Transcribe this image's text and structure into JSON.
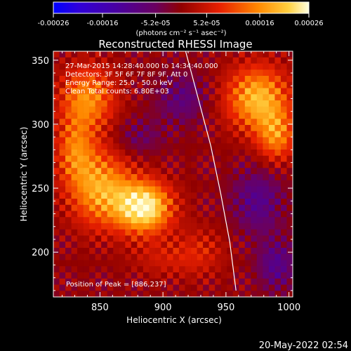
{
  "chart_data": {
    "type": "heatmap",
    "title": "Reconstructed RHESSI Image",
    "xlabel": "Heliocentric X (arcsec)",
    "ylabel": "Heliocentric Y (arcsec)",
    "xlim": [
      813,
      1003
    ],
    "ylim": [
      165,
      357
    ],
    "x_ticks": [
      850,
      900,
      950,
      1000
    ],
    "y_ticks": [
      200,
      250,
      300,
      350
    ],
    "colorbar": {
      "ticks": [
        "-0.00026",
        "-0.00016",
        "-5.2e-05",
        "5.2e-05",
        "0.00016",
        "0.00026"
      ],
      "tick_values": [
        -0.00026,
        -0.00016,
        -5.2e-05,
        5.2e-05,
        0.00016,
        0.00026
      ],
      "range": [
        -0.00026,
        0.00026
      ],
      "units_label": "(photons cm⁻² s⁻¹ asec⁻²)",
      "colormap": "rainbow-to-heat"
    },
    "annotations": [
      "27-Mar-2015 14:28:40.000 to 14:34:40.000",
      "Detectors: 3F 5F 6F 7F 8F 9F, Att 0",
      "Energy Range: 25.0 - 50.0 keV",
      "Clean     Total counts: 6.80E+03"
    ],
    "peak_label": "Position of Peak = [886,237]",
    "peak": [
      886,
      237
    ],
    "limb": [
      [
        918,
        357
      ],
      [
        928,
        320
      ],
      [
        938,
        283
      ],
      [
        946,
        245
      ],
      [
        953,
        208
      ],
      [
        958,
        170
      ]
    ],
    "sources": [
      {
        "x": 885,
        "y": 235,
        "amp": 0.00026,
        "sx": 22,
        "sy": 20
      },
      {
        "x": 850,
        "y": 250,
        "amp": 0.00018,
        "sx": 25,
        "sy": 30
      },
      {
        "x": 840,
        "y": 320,
        "amp": 0.00016,
        "sx": 22,
        "sy": 25
      },
      {
        "x": 830,
        "y": 280,
        "amp": 0.00012,
        "sx": 15,
        "sy": 25
      },
      {
        "x": 975,
        "y": 320,
        "amp": 0.0002,
        "sx": 25,
        "sy": 25
      },
      {
        "x": 990,
        "y": 290,
        "amp": 0.00014,
        "sx": 15,
        "sy": 20
      },
      {
        "x": 930,
        "y": 200,
        "amp": 6e-05,
        "sx": 20,
        "sy": 20
      },
      {
        "x": 900,
        "y": 195,
        "amp": 5e-05,
        "sx": 25,
        "sy": 15
      },
      {
        "x": 915,
        "y": 320,
        "amp": -8e-05,
        "sx": 20,
        "sy": 20
      },
      {
        "x": 975,
        "y": 240,
        "amp": -0.0001,
        "sx": 20,
        "sy": 25
      },
      {
        "x": 880,
        "y": 290,
        "amp": -6e-05,
        "sx": 20,
        "sy": 15
      },
      {
        "x": 990,
        "y": 190,
        "amp": -0.0001,
        "sx": 15,
        "sy": 20
      }
    ]
  },
  "timestamp": "20-May-2022 02:54"
}
